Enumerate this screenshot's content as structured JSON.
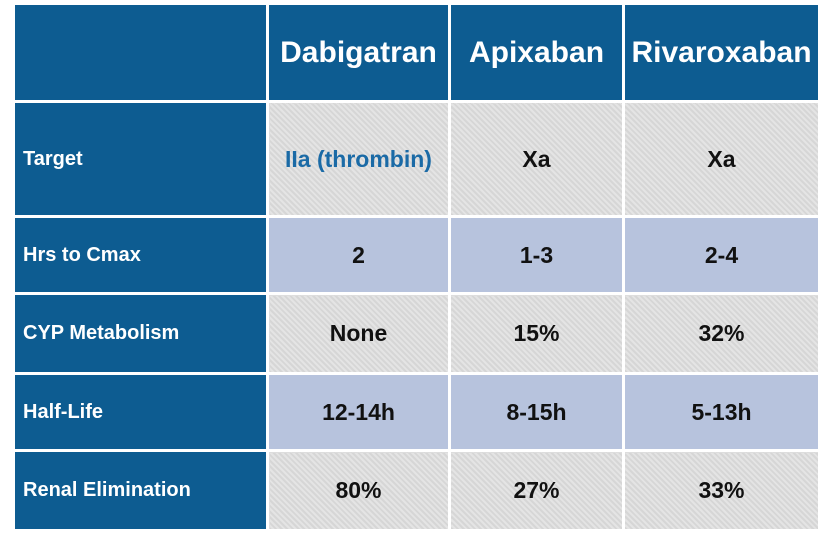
{
  "table": {
    "columns": [
      "Dabigatran",
      "Apixaban",
      "Rivaroxaban"
    ],
    "rows": [
      {
        "label": "Target",
        "cells": [
          "IIa (thrombin)",
          "Xa",
          "Xa"
        ]
      },
      {
        "label": "Hrs to Cmax",
        "cells": [
          "2",
          "1-3",
          "2-4"
        ]
      },
      {
        "label": "CYP Metabolism",
        "cells": [
          "None",
          "15%",
          "32%"
        ]
      },
      {
        "label": "Half-Life",
        "cells": [
          "12-14h",
          "8-15h",
          "5-13h"
        ]
      },
      {
        "label": "Renal Elimination",
        "cells": [
          "80%",
          "27%",
          "33%"
        ]
      }
    ]
  }
}
